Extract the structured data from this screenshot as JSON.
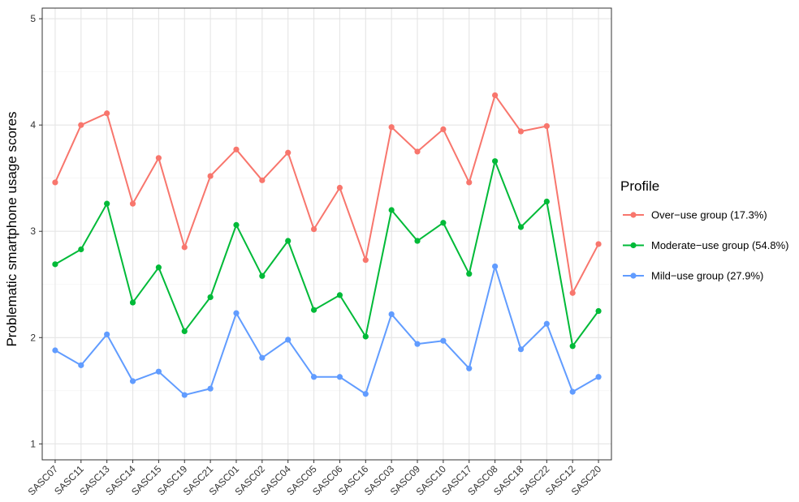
{
  "chart_data": {
    "type": "line",
    "ylabel": "Problematic smartphone usage scores",
    "xlabel": "",
    "categories": [
      "SASC07",
      "SASC11",
      "SASC13",
      "SASC14",
      "SASC15",
      "SASC19",
      "SASC21",
      "SASC01",
      "SASC02",
      "SASC04",
      "SASC05",
      "SASC06",
      "SASC16",
      "SASC03",
      "SASC09",
      "SASC10",
      "SASC17",
      "SASC08",
      "SASC18",
      "SASC22",
      "SASC12",
      "SASC20"
    ],
    "ylim": [
      0.85,
      5.1
    ],
    "yticks": [
      1,
      2,
      3,
      4,
      5
    ],
    "grid": true,
    "legend": {
      "title": "Profile",
      "position": "right"
    },
    "series": [
      {
        "name": "Over−use group (17.3%)",
        "color": "#F8766D",
        "values": [
          3.46,
          4.0,
          4.11,
          3.26,
          3.69,
          2.85,
          3.52,
          3.77,
          3.48,
          3.74,
          3.02,
          3.41,
          2.73,
          3.98,
          3.75,
          3.96,
          3.46,
          4.28,
          3.94,
          3.99,
          2.42,
          2.88
        ]
      },
      {
        "name": "Moderate−use group (54.8%)",
        "color": "#00BA38",
        "values": [
          2.69,
          2.83,
          3.26,
          2.33,
          2.66,
          2.06,
          2.38,
          3.06,
          2.58,
          2.91,
          2.26,
          2.4,
          2.01,
          3.2,
          2.91,
          3.08,
          2.6,
          3.66,
          3.04,
          3.28,
          1.92,
          2.25
        ]
      },
      {
        "name": "Mild−use group (27.9%)",
        "color": "#619CFF",
        "values": [
          1.88,
          1.74,
          2.03,
          1.59,
          1.68,
          1.46,
          1.52,
          2.23,
          1.81,
          1.98,
          1.63,
          1.63,
          1.47,
          2.22,
          1.94,
          1.97,
          1.71,
          2.67,
          1.89,
          2.13,
          1.49,
          1.63
        ]
      }
    ]
  }
}
